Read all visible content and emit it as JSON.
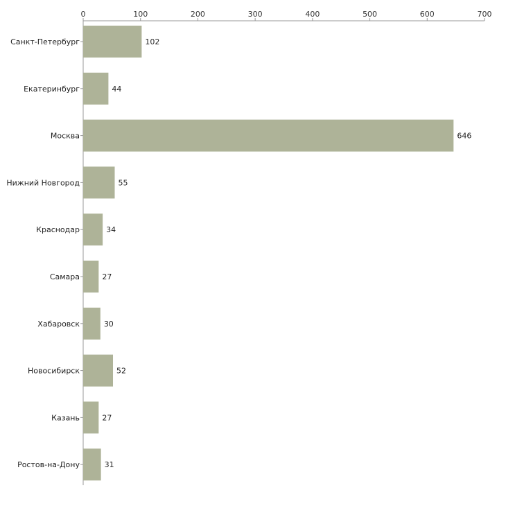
{
  "chart_data": {
    "type": "bar",
    "orientation": "horizontal",
    "title": "",
    "xlabel": "",
    "ylabel": "",
    "xlim": [
      0,
      700
    ],
    "x_ticks": [
      0,
      100,
      200,
      300,
      400,
      500,
      600,
      700
    ],
    "x_tick_labels": [
      "0",
      "100",
      "200",
      "300",
      "400",
      "500",
      "600",
      "700"
    ],
    "x_axis_position": "top",
    "grid": false,
    "legend": "none",
    "categories": [
      "Санкт-Петербург",
      "Екатеринбург",
      "Москва",
      "Нижний Новгород",
      "Краснодар",
      "Самара",
      "Хабаровск",
      "Новосибирск",
      "Казань",
      "Ростов-на-Дону"
    ],
    "values": [
      102,
      44,
      646,
      55,
      34,
      27,
      30,
      52,
      27,
      31
    ],
    "value_labels": [
      "102",
      "44",
      "646",
      "55",
      "34",
      "27",
      "30",
      "52",
      "27",
      "31"
    ],
    "bar_color": "#aeb398",
    "axis_color": "#999999"
  }
}
